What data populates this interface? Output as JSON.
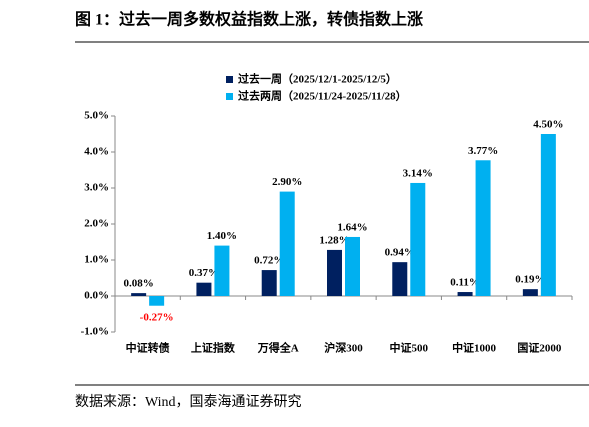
{
  "document": {
    "title": "图 1：过去一周多数权益指数上涨，转债指数上涨",
    "source": "数据来源：Wind，国泰海通证券研究"
  },
  "chart_data": {
    "type": "bar",
    "categories": [
      "中证转债",
      "上证指数",
      "万得全A",
      "沪深300",
      "中证500",
      "中证1000",
      "国证2000"
    ],
    "series": [
      {
        "name": "过去一周（2025/12/1-2025/12/5）",
        "color": "#002060",
        "values": [
          0.08,
          0.37,
          0.72,
          1.28,
          0.94,
          0.11,
          0.19
        ],
        "value_labels": [
          "0.08%",
          "0.37%",
          "0.72%",
          "1.28%",
          "0.94%",
          "0.11%",
          "0.19%"
        ]
      },
      {
        "name": "过去两周（2025/11/24-2025/11/28）",
        "color": "#00b0f0",
        "values": [
          -0.27,
          1.4,
          2.9,
          1.64,
          3.14,
          3.77,
          4.5
        ],
        "value_labels": [
          "-0.27%",
          "1.40%",
          "2.90%",
          "1.64%",
          "3.14%",
          "3.77%",
          "4.50%"
        ]
      }
    ],
    "ylim": [
      -1,
      5
    ],
    "yticks": [
      {
        "value": -1,
        "label": "-1.0%"
      },
      {
        "value": 0,
        "label": "0.0%"
      },
      {
        "value": 1,
        "label": "1.0%"
      },
      {
        "value": 2,
        "label": "2.0%"
      },
      {
        "value": 3,
        "label": "3.0%"
      },
      {
        "value": 4,
        "label": "4.0%"
      },
      {
        "value": 5,
        "label": "5.0%"
      }
    ],
    "grid": false,
    "negative_label_color": "#ff0000"
  }
}
